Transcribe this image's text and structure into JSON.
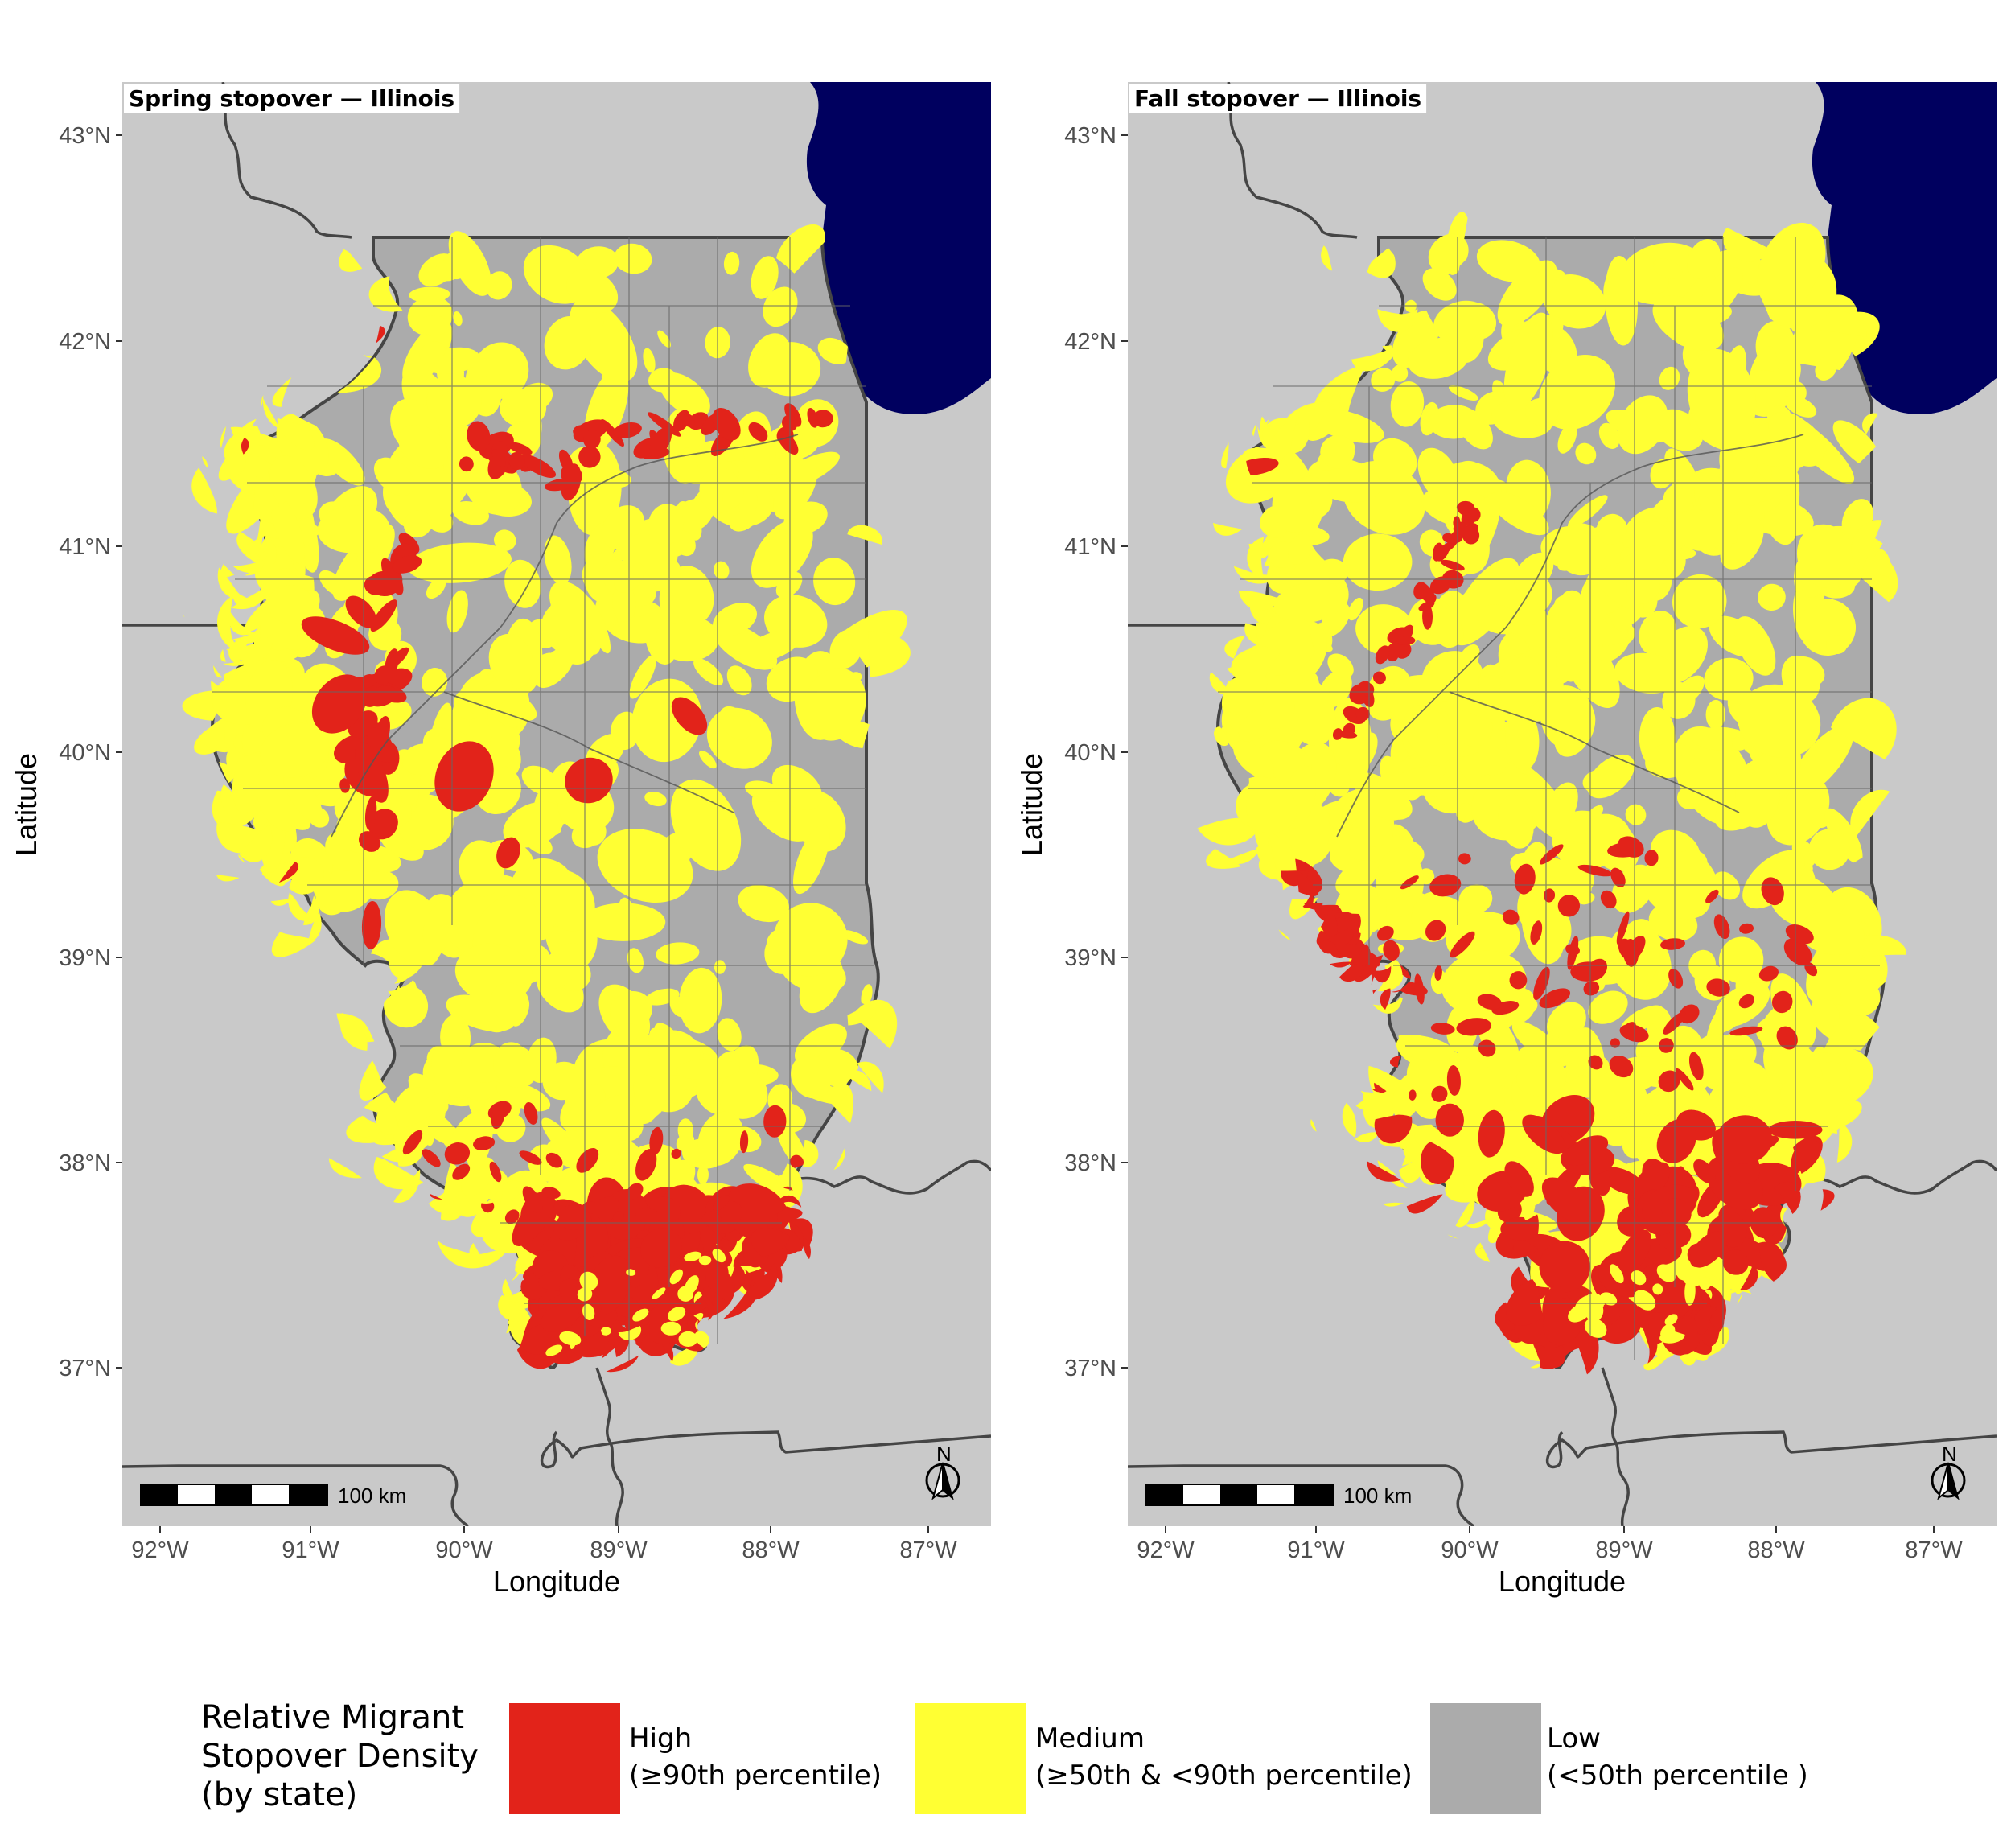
{
  "x_axis_title": "Longitude",
  "y_axis_title": "Latitude",
  "lon_ticks": [
    "92°W",
    "91°W",
    "90°W",
    "89°W",
    "88°W",
    "87°W"
  ],
  "lat_ticks": [
    "43°N",
    "42°N",
    "41°N",
    "40°N",
    "39°N",
    "38°N",
    "37°N"
  ],
  "scale_bar_label": "100 km",
  "north_arrow_label": "N",
  "panels": [
    {
      "title": "Spring stopover — Illinois",
      "season": "spring"
    },
    {
      "title": "Fall stopover — Illinois",
      "season": "fall"
    }
  ],
  "legend": {
    "title_lines": [
      "Relative Migrant",
      "Stopover Density",
      "(by state)"
    ],
    "items": [
      {
        "name": "High",
        "detail": "(≥90th percentile)",
        "color": "#e2231a"
      },
      {
        "name": "Medium",
        "detail": "(≥50th & <90th percentile)",
        "color": "#ffff33"
      },
      {
        "name": "Low",
        "detail": "(<50th percentile )",
        "color": "#ababab"
      }
    ]
  },
  "colors": {
    "background_land": "#c9c9c9",
    "lake": "#00005f",
    "low": "#ababab",
    "medium": "#ffff33",
    "high": "#e2231a",
    "boundary": "#454545"
  }
}
